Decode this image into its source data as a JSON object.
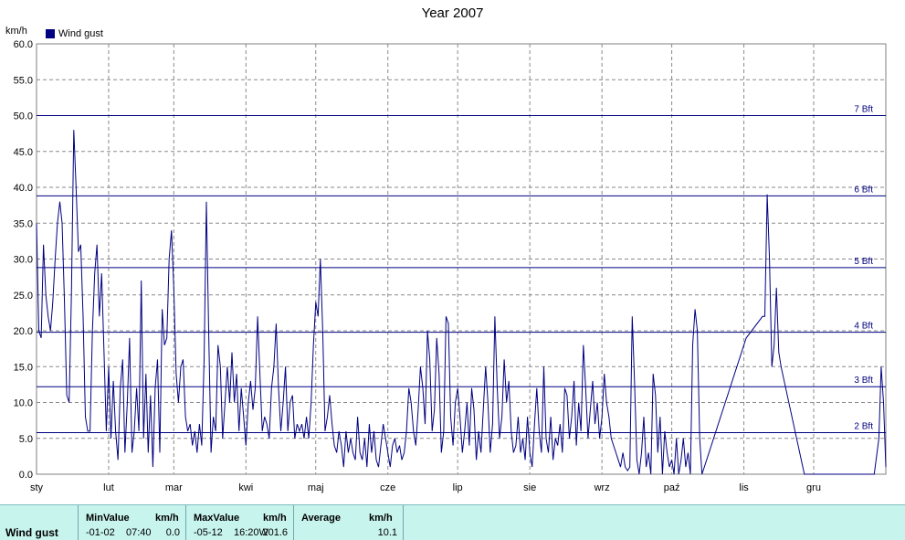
{
  "chart_data": {
    "type": "line",
    "title": "Year 2007",
    "ylabel": "km/h",
    "xlabel": "",
    "ylim": [
      0,
      60
    ],
    "yticks": [
      "0.0",
      "5.0",
      "10.0",
      "15.0",
      "20.0",
      "25.0",
      "30.0",
      "35.0",
      "40.0",
      "45.0",
      "50.0",
      "55.0",
      "60.0"
    ],
    "x_range": [
      0,
      365
    ],
    "months": [
      {
        "label": "sty",
        "day": 0
      },
      {
        "label": "lut",
        "day": 31
      },
      {
        "label": "mar",
        "day": 59
      },
      {
        "label": "kwi",
        "day": 90
      },
      {
        "label": "maj",
        "day": 120
      },
      {
        "label": "cze",
        "day": 151
      },
      {
        "label": "lip",
        "day": 181
      },
      {
        "label": "sie",
        "day": 212
      },
      {
        "label": "wrz",
        "day": 243
      },
      {
        "label": "paź",
        "day": 273
      },
      {
        "label": "lis",
        "day": 304
      },
      {
        "label": "gru",
        "day": 334
      }
    ],
    "grid": true,
    "legend_position": "top-left",
    "beaufort_lines": [
      {
        "label": "2 Bft",
        "value": 5.8
      },
      {
        "label": "3 Bft",
        "value": 12.2
      },
      {
        "label": "4 Bft",
        "value": 19.8
      },
      {
        "label": "5 Bft",
        "value": 28.8
      },
      {
        "label": "6 Bft",
        "value": 38.8
      },
      {
        "label": "7 Bft",
        "value": 50.0
      }
    ],
    "series": [
      {
        "name": "Wind gust",
        "color": "#000080",
        "points": [
          [
            0,
            35
          ],
          [
            1,
            20
          ],
          [
            2,
            19
          ],
          [
            3,
            32
          ],
          [
            4,
            25
          ],
          [
            5,
            22
          ],
          [
            6,
            20
          ],
          [
            7,
            24
          ],
          [
            8,
            30
          ],
          [
            9,
            35
          ],
          [
            10,
            38
          ],
          [
            11,
            35
          ],
          [
            12,
            24
          ],
          [
            13,
            11
          ],
          [
            14,
            10
          ],
          [
            15,
            25
          ],
          [
            16,
            48
          ],
          [
            17,
            40
          ],
          [
            18,
            31
          ],
          [
            19,
            32
          ],
          [
            20,
            22
          ],
          [
            21,
            8
          ],
          [
            22,
            6
          ],
          [
            23,
            6
          ],
          [
            24,
            20
          ],
          [
            25,
            28
          ],
          [
            26,
            32
          ],
          [
            27,
            22
          ],
          [
            28,
            28
          ],
          [
            29,
            17
          ],
          [
            30,
            6
          ],
          [
            31,
            15
          ],
          [
            32,
            5
          ],
          [
            33,
            13
          ],
          [
            34,
            6
          ],
          [
            35,
            2
          ],
          [
            36,
            12
          ],
          [
            37,
            16
          ],
          [
            38,
            3
          ],
          [
            39,
            10
          ],
          [
            40,
            19
          ],
          [
            41,
            3
          ],
          [
            42,
            6
          ],
          [
            43,
            12
          ],
          [
            44,
            6
          ],
          [
            45,
            27
          ],
          [
            46,
            5
          ],
          [
            47,
            14
          ],
          [
            48,
            3
          ],
          [
            49,
            11
          ],
          [
            50,
            1
          ],
          [
            51,
            12
          ],
          [
            52,
            16
          ],
          [
            53,
            3
          ],
          [
            54,
            23
          ],
          [
            55,
            18
          ],
          [
            56,
            19
          ],
          [
            57,
            30
          ],
          [
            58,
            34
          ],
          [
            59,
            26
          ],
          [
            60,
            14
          ],
          [
            61,
            10
          ],
          [
            62,
            15
          ],
          [
            63,
            16
          ],
          [
            64,
            8
          ],
          [
            65,
            6
          ],
          [
            66,
            7
          ],
          [
            67,
            4
          ],
          [
            68,
            6
          ],
          [
            69,
            3
          ],
          [
            70,
            7
          ],
          [
            71,
            4
          ],
          [
            72,
            16
          ],
          [
            73,
            38
          ],
          [
            74,
            20
          ],
          [
            75,
            3
          ],
          [
            76,
            8
          ],
          [
            77,
            6
          ],
          [
            78,
            18
          ],
          [
            79,
            15
          ],
          [
            80,
            5
          ],
          [
            81,
            10
          ],
          [
            82,
            15
          ],
          [
            83,
            10
          ],
          [
            84,
            17
          ],
          [
            85,
            10
          ],
          [
            86,
            14
          ],
          [
            87,
            6
          ],
          [
            88,
            12
          ],
          [
            89,
            8
          ],
          [
            90,
            4
          ],
          [
            91,
            10
          ],
          [
            92,
            13
          ],
          [
            93,
            9
          ],
          [
            94,
            12
          ],
          [
            95,
            22
          ],
          [
            96,
            14
          ],
          [
            97,
            6
          ],
          [
            98,
            8
          ],
          [
            99,
            7
          ],
          [
            100,
            5
          ],
          [
            101,
            12
          ],
          [
            102,
            15
          ],
          [
            103,
            21
          ],
          [
            104,
            12
          ],
          [
            105,
            6
          ],
          [
            106,
            10
          ],
          [
            107,
            15
          ],
          [
            108,
            6
          ],
          [
            109,
            10
          ],
          [
            110,
            11
          ],
          [
            111,
            5
          ],
          [
            112,
            7
          ],
          [
            113,
            6
          ],
          [
            114,
            7
          ],
          [
            115,
            5
          ],
          [
            116,
            8
          ],
          [
            117,
            5
          ],
          [
            118,
            10
          ],
          [
            119,
            18
          ],
          [
            120,
            24
          ],
          [
            121,
            22
          ],
          [
            122,
            30
          ],
          [
            123,
            20
          ],
          [
            124,
            6
          ],
          [
            125,
            8
          ],
          [
            126,
            11
          ],
          [
            127,
            7
          ],
          [
            128,
            4
          ],
          [
            129,
            3
          ],
          [
            130,
            6
          ],
          [
            131,
            4
          ],
          [
            132,
            1
          ],
          [
            133,
            6
          ],
          [
            134,
            3
          ],
          [
            135,
            5
          ],
          [
            136,
            3
          ],
          [
            137,
            2
          ],
          [
            138,
            8
          ],
          [
            139,
            3
          ],
          [
            140,
            2
          ],
          [
            141,
            5
          ],
          [
            142,
            1
          ],
          [
            143,
            7
          ],
          [
            144,
            3
          ],
          [
            145,
            6
          ],
          [
            146,
            2
          ],
          [
            147,
            1
          ],
          [
            148,
            4
          ],
          [
            149,
            7
          ],
          [
            150,
            5
          ],
          [
            151,
            3
          ],
          [
            152,
            1
          ],
          [
            153,
            4
          ],
          [
            154,
            5
          ],
          [
            155,
            3
          ],
          [
            156,
            4
          ],
          [
            157,
            2
          ],
          [
            158,
            3
          ],
          [
            159,
            6
          ],
          [
            160,
            12
          ],
          [
            161,
            10
          ],
          [
            162,
            6
          ],
          [
            163,
            4
          ],
          [
            164,
            9
          ],
          [
            165,
            15
          ],
          [
            166,
            12
          ],
          [
            167,
            7
          ],
          [
            168,
            20
          ],
          [
            169,
            16
          ],
          [
            170,
            6
          ],
          [
            171,
            9
          ],
          [
            172,
            19
          ],
          [
            173,
            14
          ],
          [
            174,
            3
          ],
          [
            175,
            6
          ],
          [
            176,
            22
          ],
          [
            177,
            21
          ],
          [
            178,
            8
          ],
          [
            179,
            4
          ],
          [
            180,
            10
          ],
          [
            181,
            12
          ],
          [
            182,
            8
          ],
          [
            183,
            3
          ],
          [
            184,
            6
          ],
          [
            185,
            10
          ],
          [
            186,
            4
          ],
          [
            187,
            12
          ],
          [
            188,
            9
          ],
          [
            189,
            2
          ],
          [
            190,
            6
          ],
          [
            191,
            3
          ],
          [
            192,
            9
          ],
          [
            193,
            15
          ],
          [
            194,
            10
          ],
          [
            195,
            3
          ],
          [
            196,
            7
          ],
          [
            197,
            22
          ],
          [
            198,
            12
          ],
          [
            199,
            5
          ],
          [
            200,
            8
          ],
          [
            201,
            16
          ],
          [
            202,
            10
          ],
          [
            203,
            13
          ],
          [
            204,
            6
          ],
          [
            205,
            3
          ],
          [
            206,
            4
          ],
          [
            207,
            8
          ],
          [
            208,
            3
          ],
          [
            209,
            5
          ],
          [
            210,
            2
          ],
          [
            211,
            8
          ],
          [
            212,
            3
          ],
          [
            213,
            1
          ],
          [
            214,
            7
          ],
          [
            215,
            12
          ],
          [
            216,
            6
          ],
          [
            217,
            3
          ],
          [
            218,
            15
          ],
          [
            219,
            5
          ],
          [
            220,
            3
          ],
          [
            221,
            8
          ],
          [
            222,
            2
          ],
          [
            223,
            5
          ],
          [
            224,
            4
          ],
          [
            225,
            7
          ],
          [
            226,
            3
          ],
          [
            227,
            12
          ],
          [
            228,
            11
          ],
          [
            229,
            5
          ],
          [
            230,
            8
          ],
          [
            231,
            13
          ],
          [
            232,
            4
          ],
          [
            233,
            10
          ],
          [
            234,
            6
          ],
          [
            235,
            18
          ],
          [
            236,
            12
          ],
          [
            237,
            5
          ],
          [
            238,
            9
          ],
          [
            239,
            13
          ],
          [
            240,
            7
          ],
          [
            241,
            10
          ],
          [
            242,
            5
          ],
          [
            243,
            8
          ],
          [
            244,
            14
          ],
          [
            245,
            10
          ],
          [
            246,
            8
          ],
          [
            247,
            5
          ],
          [
            248,
            4
          ],
          [
            249,
            3
          ],
          [
            250,
            2
          ],
          [
            251,
            1
          ],
          [
            252,
            3
          ],
          [
            253,
            1
          ],
          [
            254,
            0.5
          ],
          [
            255,
            1
          ],
          [
            256,
            22
          ],
          [
            257,
            13
          ],
          [
            258,
            2
          ],
          [
            259,
            0
          ],
          [
            260,
            3
          ],
          [
            261,
            8
          ],
          [
            262,
            1
          ],
          [
            263,
            3
          ],
          [
            264,
            0
          ],
          [
            265,
            14
          ],
          [
            266,
            11
          ],
          [
            267,
            3
          ],
          [
            268,
            8
          ],
          [
            269,
            0
          ],
          [
            270,
            6
          ],
          [
            271,
            3
          ],
          [
            272,
            1
          ],
          [
            273,
            2
          ],
          [
            274,
            0
          ],
          [
            275,
            5
          ],
          [
            276,
            0
          ],
          [
            277,
            2
          ],
          [
            278,
            5
          ],
          [
            279,
            1
          ],
          [
            280,
            3
          ],
          [
            281,
            0
          ],
          [
            282,
            18
          ],
          [
            283,
            23
          ],
          [
            284,
            20
          ],
          [
            285,
            5
          ],
          [
            286,
            0
          ],
          [
            305,
            19
          ],
          [
            312,
            22
          ],
          [
            313,
            22
          ],
          [
            314,
            39
          ],
          [
            315,
            30
          ],
          [
            316,
            15
          ],
          [
            317,
            18
          ],
          [
            318,
            26
          ],
          [
            319,
            17
          ],
          [
            320,
            15
          ],
          [
            330,
            0
          ],
          [
            340,
            0
          ],
          [
            350,
            0
          ],
          [
            355,
            0
          ],
          [
            360,
            0
          ],
          [
            362,
            5
          ],
          [
            363,
            15
          ],
          [
            364,
            10
          ],
          [
            365,
            1
          ]
        ]
      }
    ]
  },
  "footer": {
    "series_label": "Wind gust",
    "min": {
      "header": "MinValue",
      "unit": "km/h",
      "date": "-01-02",
      "time": "07:40",
      "value": "0.0"
    },
    "max": {
      "header": "MaxValue",
      "unit": "km/h",
      "date": "-05-12",
      "time": "16:20W",
      "value": "201.6"
    },
    "avg": {
      "header": "Average",
      "unit": "km/h",
      "value": "10.1"
    }
  }
}
